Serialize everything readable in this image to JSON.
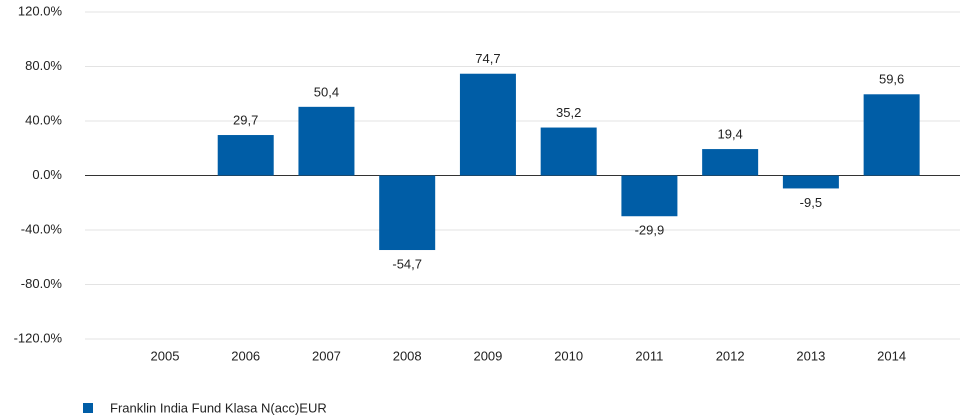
{
  "chart_data": {
    "type": "bar",
    "categories": [
      "2005",
      "2006",
      "2007",
      "2008",
      "2009",
      "2010",
      "2011",
      "2012",
      "2013",
      "2014"
    ],
    "series": [
      {
        "name": "Franklin India Fund Klasa N(acc)EUR",
        "color": "#005da6",
        "values": [
          null,
          29.7,
          50.4,
          -54.7,
          74.7,
          35.2,
          -29.9,
          19.4,
          -9.5,
          59.6
        ],
        "value_labels": [
          null,
          "29,7",
          "50,4",
          "-54,7",
          "74,7",
          "35,2",
          "-29,9",
          "19,4",
          "-9,5",
          "59,6"
        ]
      }
    ],
    "ylim": [
      -120,
      120
    ],
    "yticks": [
      {
        "value": -120,
        "label": "-120.0%"
      },
      {
        "value": -80,
        "label": "-80.0%"
      },
      {
        "value": -40,
        "label": "-40.0%"
      },
      {
        "value": 0,
        "label": "0.0%"
      },
      {
        "value": 40,
        "label": "40.0%"
      },
      {
        "value": 80,
        "label": "80.0%"
      },
      {
        "value": 120,
        "label": "120.0%"
      }
    ],
    "grid": true,
    "legend": "bottom-left"
  }
}
